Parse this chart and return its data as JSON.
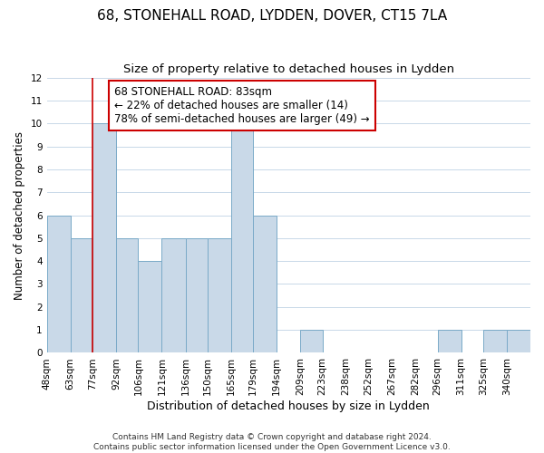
{
  "title": "68, STONEHALL ROAD, LYDDEN, DOVER, CT15 7LA",
  "subtitle": "Size of property relative to detached houses in Lydden",
  "xlabel": "Distribution of detached houses by size in Lydden",
  "ylabel": "Number of detached properties",
  "footer_line1": "Contains HM Land Registry data © Crown copyright and database right 2024.",
  "footer_line2": "Contains public sector information licensed under the Open Government Licence v3.0.",
  "annotation_title": "68 STONEHALL ROAD: 83sqm",
  "annotation_line2": "← 22% of detached houses are smaller (14)",
  "annotation_line3": "78% of semi-detached houses are larger (49) →",
  "bins": [
    48,
    63,
    77,
    92,
    106,
    121,
    136,
    150,
    165,
    179,
    194,
    209,
    223,
    238,
    252,
    267,
    282,
    296,
    311,
    325,
    340
  ],
  "counts": [
    6,
    5,
    10,
    5,
    4,
    5,
    5,
    5,
    10,
    6,
    0,
    1,
    0,
    0,
    0,
    0,
    0,
    1,
    0,
    1,
    1
  ],
  "bar_color": "#c9d9e8",
  "bar_edge_color": "#7aaac8",
  "subject_line_color": "#cc0000",
  "subject_bin_index": 2,
  "ylim": [
    0,
    12
  ],
  "yticks": [
    0,
    1,
    2,
    3,
    4,
    5,
    6,
    7,
    8,
    9,
    10,
    11,
    12
  ],
  "background_color": "#ffffff",
  "grid_color": "#c8d8e8",
  "annotation_box_color": "#ffffff",
  "annotation_box_edge_color": "#cc0000",
  "title_fontsize": 11,
  "subtitle_fontsize": 9.5,
  "xlabel_fontsize": 9,
  "ylabel_fontsize": 8.5,
  "tick_fontsize": 7.5,
  "annotation_fontsize": 8.5,
  "footer_fontsize": 6.5
}
